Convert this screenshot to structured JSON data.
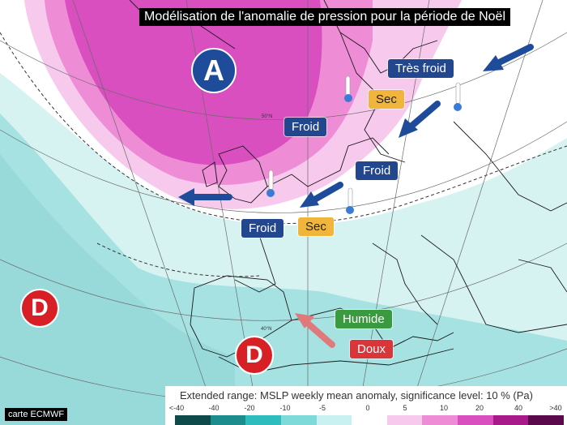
{
  "title": "Modélisation de l'anomalie de pression pour la  période  de Noël",
  "pressure_systems": [
    {
      "label": "A",
      "kind": "high"
    },
    {
      "label": "D",
      "kind": "low"
    },
    {
      "label": "D",
      "kind": "low"
    }
  ],
  "tags": [
    {
      "text": "Très froid",
      "color": "blue"
    },
    {
      "text": "Sec",
      "color": "yellow"
    },
    {
      "text": "Froid",
      "color": "blue"
    },
    {
      "text": "Froid",
      "color": "blue"
    },
    {
      "text": "Froid",
      "color": "blue"
    },
    {
      "text": "Sec",
      "color": "yellow"
    },
    {
      "text": "Humide",
      "color": "green"
    },
    {
      "text": "Doux",
      "color": "red"
    }
  ],
  "graticule_labels": [
    "50°N",
    "40°N"
  ],
  "legend": {
    "title": "Extended range: MSLP weekly mean anomaly, significance level: 10 % (Pa)",
    "ticks": [
      "<-40",
      "-40",
      "-20",
      "-10",
      "-5",
      "0",
      "5",
      "10",
      "20",
      "40",
      ">40"
    ],
    "colors": [
      "#0f4a4a",
      "#1d8c8c",
      "#2fbcbc",
      "#7ed9d9",
      "#c9f1f1",
      "#ffffff",
      "#f7c9ec",
      "#ee8cd6",
      "#d94fc0",
      "#a8198a",
      "#5a0a4a"
    ]
  },
  "source": "carte ECMWF",
  "colors": {
    "pink_dark": "#d94fc0",
    "pink_mid": "#ee8cd6",
    "pink_light": "#f7c9ec",
    "teal": "#a6e2e2",
    "teal_light": "#d6f3f2",
    "tag_blue": "#22478f",
    "tag_yellow": "#f2b53c",
    "tag_green": "#3a9a3f",
    "tag_red": "#d9363b"
  }
}
